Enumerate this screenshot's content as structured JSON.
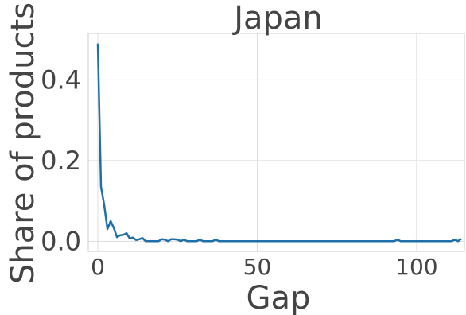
{
  "chart_data": {
    "type": "line",
    "title": "Japan",
    "xlabel": "Gap",
    "ylabel": "Share of products",
    "xlim": [
      -3,
      115
    ],
    "ylim": [
      -0.025,
      0.515
    ],
    "grid": true,
    "x_ticks": [
      0,
      50,
      100
    ],
    "x_tick_labels": [
      "0",
      "50",
      "100"
    ],
    "y_ticks": [
      0.0,
      0.2,
      0.4
    ],
    "y_tick_labels": [
      "0.0",
      "0.2",
      "0.4"
    ],
    "series": [
      {
        "color": "#1f6fa8",
        "x": [
          0,
          1,
          2,
          3,
          4,
          5,
          6,
          7,
          8,
          9,
          10,
          11,
          12,
          13,
          14,
          15,
          16,
          17,
          18,
          19,
          20,
          21,
          22,
          23,
          24,
          25,
          26,
          27,
          28,
          29,
          30,
          31,
          32,
          33,
          34,
          35,
          36,
          37,
          38,
          39,
          40,
          45,
          50,
          55,
          60,
          65,
          70,
          75,
          80,
          85,
          90,
          93,
          94,
          95,
          96,
          100,
          105,
          110,
          111,
          112,
          113,
          114
        ],
        "y": [
          0.49,
          0.135,
          0.09,
          0.03,
          0.05,
          0.033,
          0.01,
          0.015,
          0.016,
          0.02,
          0.007,
          0.009,
          0.003,
          0.005,
          0.008,
          0.0,
          0.0,
          0.0,
          0.0,
          0.0,
          0.005,
          0.004,
          0.0,
          0.005,
          0.005,
          0.004,
          0.0,
          0.004,
          0.0,
          0.0,
          0.0,
          0.0,
          0.004,
          0.0,
          0.0,
          0.0,
          0.0,
          0.004,
          0.0,
          0.0,
          0.0,
          0.0,
          0.0,
          0.0,
          0.0,
          0.0,
          0.0,
          0.0,
          0.0,
          0.0,
          0.0,
          0.0,
          0.004,
          0.0,
          0.0,
          0.0,
          0.0,
          0.0,
          0.0,
          0.004,
          0.0,
          0.006
        ]
      }
    ]
  }
}
